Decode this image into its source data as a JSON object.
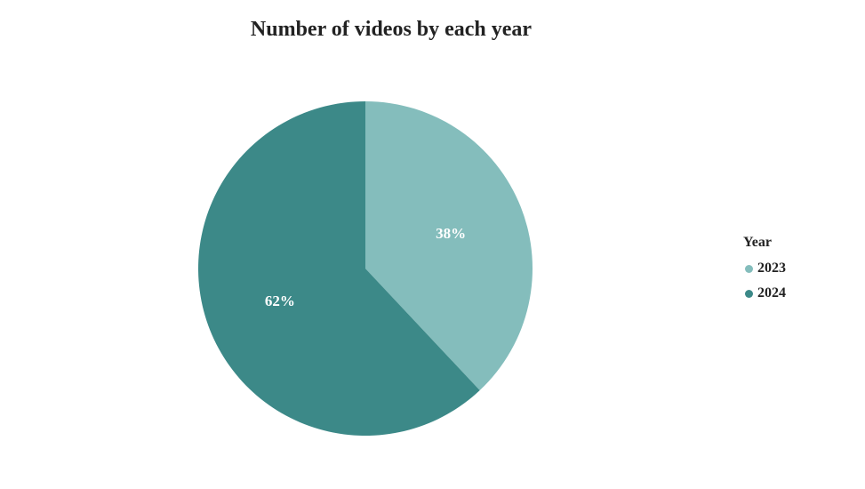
{
  "chart_data": {
    "type": "pie",
    "title": "Number of videos by each year",
    "legend_title": "Year",
    "legend_position": "right",
    "slices": [
      {
        "label": "2023",
        "percent": 38,
        "percent_label": "38%",
        "color": "#84bdbc"
      },
      {
        "label": "2024",
        "percent": 62,
        "percent_label": "62%",
        "color": "#3c8988"
      }
    ]
  }
}
